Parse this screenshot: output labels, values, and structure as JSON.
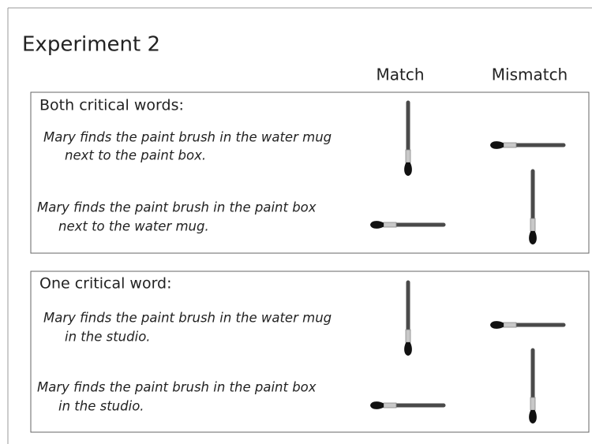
{
  "title": "Experiment 2",
  "columns": [
    "Match",
    "Mismatch"
  ],
  "panels": [
    {
      "heading": "Both critical words:",
      "sentences": [
        {
          "lines": [
            "Mary finds the paint brush in the water mug",
            "next to the paint box."
          ]
        },
        {
          "lines": [
            "Mary finds the paint brush in the paint box",
            "next to the water mug."
          ]
        }
      ]
    },
    {
      "heading": "One critical word:",
      "sentences": [
        {
          "lines": [
            "Mary finds the paint brush in the water mug",
            "in the studio."
          ]
        },
        {
          "lines": [
            "Mary finds the paint brush in the paint box",
            "in the studio."
          ]
        }
      ]
    }
  ]
}
